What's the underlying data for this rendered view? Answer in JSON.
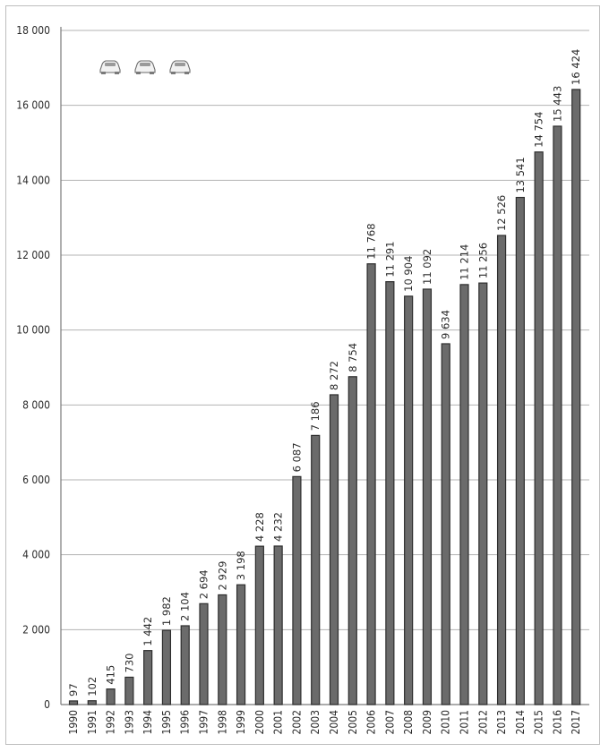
{
  "chart_data": {
    "type": "bar",
    "categories": [
      "1990",
      "1991",
      "1992",
      "1993",
      "1994",
      "1995",
      "1996",
      "1997",
      "1998",
      "1999",
      "2000",
      "2001",
      "2002",
      "2003",
      "2004",
      "2005",
      "2006",
      "2007",
      "2008",
      "2009",
      "2010",
      "2011",
      "2012",
      "2013",
      "2014",
      "2015",
      "2016",
      "2017"
    ],
    "values": [
      97,
      102,
      415,
      730,
      1442,
      1982,
      2104,
      2694,
      2929,
      3198,
      4228,
      4232,
      6087,
      7186,
      8272,
      8754,
      11768,
      11291,
      10904,
      11092,
      9634,
      11214,
      11256,
      12526,
      13541,
      14754,
      15443,
      16424
    ],
    "data_labels": [
      "97",
      "102",
      "415",
      "730",
      "1 442",
      "1 982",
      "2 104",
      "2 694",
      "2 929",
      "3 198",
      "4 228",
      "4 232",
      "6 087",
      "7 186",
      "8 272",
      "8 754",
      "11 768",
      "11 291",
      "10 904",
      "11 092",
      "9 634",
      "11 214",
      "11 256",
      "12 526",
      "13 541",
      "14 754",
      "15 443",
      "16 424"
    ],
    "y_ticks": [
      "0",
      "2 000",
      "4 000",
      "6 000",
      "8 000",
      "10 000",
      "12 000",
      "14 000",
      "16 000",
      "18 000"
    ],
    "ylim": [
      0,
      18000
    ],
    "title": "",
    "xlabel": "",
    "ylabel": "",
    "grid": true,
    "colors": {
      "bar_fill": "#6b6b6b",
      "bar_stroke": "#2e2e2e",
      "grid": "#b3b3b3"
    }
  },
  "decoration": {
    "icon": "car-icon",
    "count": 3
  }
}
